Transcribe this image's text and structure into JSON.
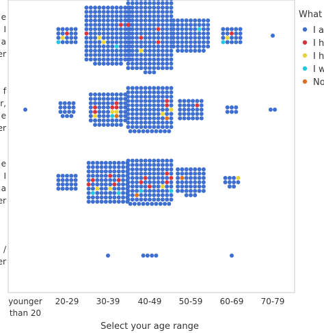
{
  "chart_data": {
    "type": "scatter",
    "subtype": "beeswarm",
    "xlabel": "Select your age range",
    "categories": [
      "younger\nthan 20",
      "20-29",
      "30-39",
      "40-49",
      "50-59",
      "60-69",
      "70-79"
    ],
    "row_label_fragments": [
      [
        "e",
        "I",
        "a",
        "er"
      ],
      [
        "f",
        "r,",
        "e",
        "er"
      ],
      [
        "e",
        "I",
        "a",
        "er"
      ],
      [
        "/",
        "er"
      ]
    ],
    "legend": {
      "title": "What i",
      "position": "right",
      "entries": [
        {
          "label": "I a",
          "color": "#3e6fd0"
        },
        {
          "label": "I h",
          "color": "#d6353d"
        },
        {
          "label": "I h",
          "color": "#e8d23a"
        },
        {
          "label": "I w",
          "color": "#25c7e0"
        },
        {
          "label": "No",
          "color": "#d86f22"
        }
      ]
    },
    "rows": [
      {
        "counts": [
          0,
          20,
          150,
          190,
          70,
          20,
          1
        ],
        "colored": {
          "1": [
            {
              "c": 1,
              "n": 1
            },
            {
              "c": 2,
              "n": 1
            },
            {
              "c": 3,
              "n": 1
            }
          ],
          "2": [
            {
              "c": 1,
              "n": 2
            },
            {
              "c": 2,
              "n": 2
            },
            {
              "c": 3,
              "n": 1
            }
          ],
          "3": [
            {
              "c": 1,
              "n": 4
            },
            {
              "c": 2,
              "n": 1
            }
          ],
          "4": [
            {
              "c": 3,
              "n": 1
            }
          ],
          "5": [
            {
              "c": 1,
              "n": 1
            },
            {
              "c": 2,
              "n": 1
            },
            {
              "c": 3,
              "n": 1
            }
          ]
        }
      },
      {
        "counts": [
          1,
          15,
          70,
          120,
          30,
          6,
          2
        ],
        "colored": {
          "2": [
            {
              "c": 1,
              "n": 5
            },
            {
              "c": 2,
              "n": 3
            },
            {
              "c": 3,
              "n": 1
            },
            {
              "c": 4,
              "n": 1
            }
          ],
          "3": [
            {
              "c": 1,
              "n": 2
            },
            {
              "c": 2,
              "n": 2
            },
            {
              "c": 4,
              "n": 1
            }
          ],
          "4": [
            {
              "c": 1,
              "n": 1
            }
          ]
        }
      },
      {
        "counts": [
          0,
          20,
          100,
          120,
          45,
          10,
          0
        ],
        "colored": {
          "2": [
            {
              "c": 1,
              "n": 5
            },
            {
              "c": 2,
              "n": 2
            },
            {
              "c": 3,
              "n": 2
            }
          ],
          "3": [
            {
              "c": 1,
              "n": 6
            },
            {
              "c": 2,
              "n": 1
            },
            {
              "c": 3,
              "n": 2
            },
            {
              "c": 4,
              "n": 1
            }
          ],
          "4": [
            {
              "c": 4,
              "n": 1
            }
          ],
          "5": [
            {
              "c": 2,
              "n": 1
            }
          ]
        }
      },
      {
        "counts": [
          0,
          0,
          1,
          4,
          0,
          1,
          0
        ],
        "colored": {}
      }
    ]
  }
}
